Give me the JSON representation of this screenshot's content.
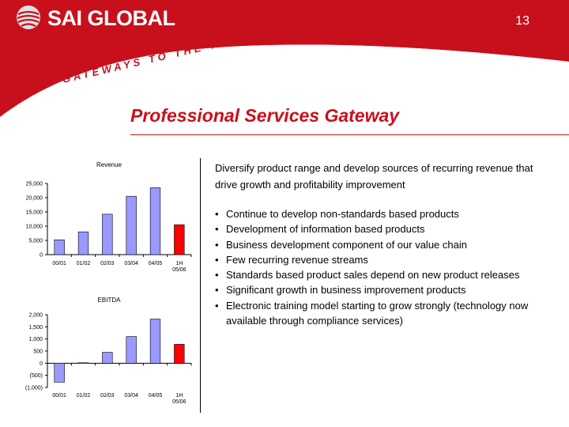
{
  "header": {
    "logo_text": "SAI GLOBAL",
    "tagline": "GATEWAYS TO THE WORLD",
    "page_number": "13",
    "colors": {
      "brand_red": "#c8101c",
      "globe_grey": "#e0e0e0"
    }
  },
  "title": "Professional Services Gateway",
  "intro": "Diversify product range and develop sources of recurring revenue that drive growth and profitability improvement",
  "bullets": [
    "Continue to develop non-standards based products",
    "Development of information based products",
    "Business development component of our value chain",
    "Few recurring revenue streams",
    "Standards based product sales depend on new product releases",
    "Significant growth in business improvement products",
    "Electronic training model starting to grow strongly (technology now available through compliance services)"
  ],
  "bullet_glyph": "•",
  "chart_data": [
    {
      "type": "bar",
      "title": "Revenue",
      "categories": [
        "00/01",
        "01/02",
        "02/03",
        "03/04",
        "04/05",
        "1H 05/06"
      ],
      "values": [
        5200,
        8000,
        14200,
        20500,
        23500,
        10500
      ],
      "colors": [
        "#9999ff",
        "#9999ff",
        "#9999ff",
        "#9999ff",
        "#9999ff",
        "#ff0000"
      ],
      "yticks": [
        0,
        5000,
        10000,
        15000,
        20000,
        25000
      ],
      "ytick_labels": [
        "0",
        "5,000",
        "10,000",
        "15,000",
        "20,000",
        "25,000"
      ],
      "ylim": [
        0,
        25000
      ],
      "grid": false
    },
    {
      "type": "bar",
      "title": "EBITDA",
      "categories": [
        "00/01",
        "01/02",
        "02/03",
        "03/04",
        "04/05",
        "1H 05/06"
      ],
      "values": [
        -780,
        20,
        450,
        1100,
        1820,
        780
      ],
      "colors": [
        "#9999ff",
        "#9999ff",
        "#9999ff",
        "#9999ff",
        "#9999ff",
        "#ff0000"
      ],
      "yticks": [
        -1000,
        -500,
        0,
        500,
        1000,
        1500,
        2000
      ],
      "ytick_labels": [
        "(1,000)",
        "(500)",
        "0",
        "500",
        "1,000",
        "1,500",
        "2,000"
      ],
      "ylim": [
        -1000,
        2000
      ],
      "grid": false
    }
  ]
}
